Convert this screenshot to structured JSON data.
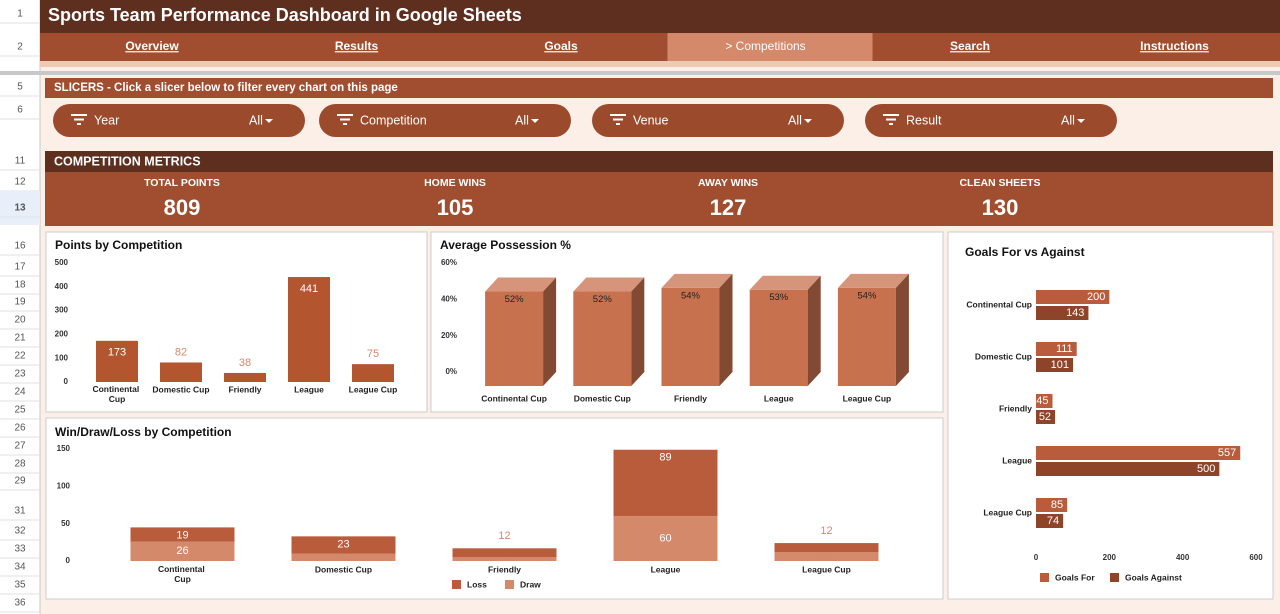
{
  "header": {
    "title": "Sports Team Performance Dashboard in Google Sheets"
  },
  "row_numbers": [
    1,
    2,
    5,
    6,
    11,
    12,
    13,
    16,
    17,
    18,
    19,
    20,
    21,
    22,
    23,
    24,
    25,
    26,
    27,
    28,
    29,
    31,
    32,
    33,
    34,
    35,
    36
  ],
  "selected_row": 13,
  "nav": {
    "tabs": [
      "Overview",
      "Results",
      "Goals",
      "> Competitions",
      "Search",
      "Instructions"
    ],
    "active": 3
  },
  "slicers": {
    "title": "SLICERS - Click a slicer below to filter every chart on this page",
    "items": [
      {
        "label": "Year",
        "value": "All"
      },
      {
        "label": "Competition",
        "value": "All"
      },
      {
        "label": "Venue",
        "value": "All"
      },
      {
        "label": "Result",
        "value": "All"
      }
    ]
  },
  "metrics": {
    "title": "COMPETITION METRICS",
    "items": [
      {
        "label": "TOTAL POINTS",
        "value": 809
      },
      {
        "label": "HOME WINS",
        "value": 105
      },
      {
        "label": "AWAY WINS",
        "value": 127
      },
      {
        "label": "CLEAN SHEETS",
        "value": 130
      }
    ]
  },
  "chart_data": [
    {
      "type": "bar",
      "title": "Points by Competition",
      "categories": [
        "Continental Cup",
        "Domestic Cup",
        "Friendly",
        "League",
        "League Cup"
      ],
      "values": [
        173,
        82,
        38,
        441,
        75
      ],
      "color": "#b3552f",
      "ylim": [
        0,
        500
      ],
      "yticks": [
        0,
        100,
        200,
        300,
        400,
        500
      ]
    },
    {
      "type": "bar",
      "3d": true,
      "title": "Average Possession %",
      "categories": [
        "Continental Cup",
        "Domestic Cup",
        "Friendly",
        "League",
        "League Cup"
      ],
      "values": [
        52,
        52,
        54,
        53,
        54
      ],
      "value_labels": [
        "52%",
        "52%",
        "54%",
        "53%",
        "54%"
      ],
      "color": "#c8714f",
      "ylim": [
        0,
        60
      ],
      "yticks": [
        {
          "value": 0,
          "label": "0%"
        },
        {
          "value": 20,
          "label": "20%"
        },
        {
          "value": 40,
          "label": "40%"
        },
        {
          "value": 60,
          "label": "60%"
        }
      ]
    },
    {
      "type": "stacked_bar",
      "title": "Win/Draw/Loss by Competition",
      "categories": [
        "Continental Cup",
        "Domestic Cup",
        "Friendly",
        "League",
        "League Cup"
      ],
      "series": [
        {
          "name": "Loss",
          "color": "#b85c3c",
          "values": [
            19,
            23,
            12,
            89,
            12
          ]
        },
        {
          "name": "Draw",
          "color": "#d4896a",
          "values": [
            26,
            10,
            5,
            60,
            12
          ]
        }
      ],
      "ylim": [
        0,
        150
      ],
      "yticks": [
        0,
        50,
        100,
        150
      ],
      "legend": "bottom"
    },
    {
      "type": "horizontal_bar",
      "title": "Goals For vs Against",
      "categories": [
        "Continental Cup",
        "Domestic Cup",
        "Friendly",
        "League",
        "League Cup"
      ],
      "series": [
        {
          "name": "Goals For",
          "color": "#b85c3c",
          "values": [
            200,
            111,
            45,
            557,
            85
          ]
        },
        {
          "name": "Goals Against",
          "color": "#8e4429",
          "values": [
            143,
            101,
            52,
            500,
            74
          ]
        }
      ],
      "xlim": [
        0,
        600
      ],
      "xticks": [
        0,
        200,
        400,
        600
      ],
      "legend": "bottom"
    }
  ]
}
